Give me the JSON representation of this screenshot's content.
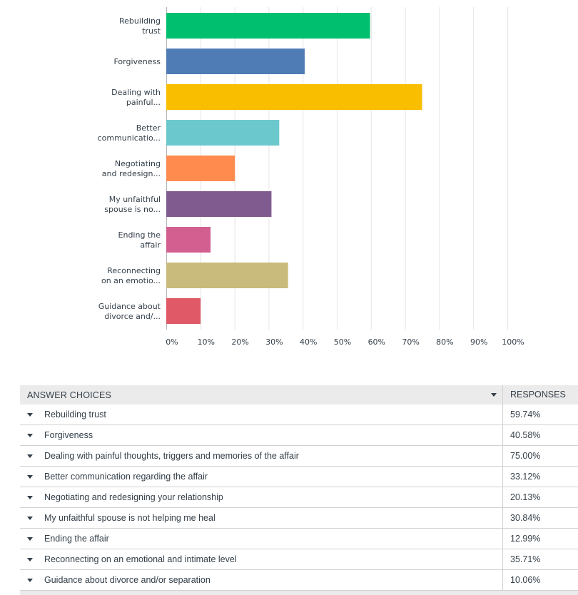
{
  "chart_data": {
    "type": "bar",
    "orientation": "horizontal",
    "categories": [
      [
        "Rebuilding",
        "trust"
      ],
      [
        "Forgiveness"
      ],
      [
        "Dealing with",
        "painful..."
      ],
      [
        "Better",
        "communicatio..."
      ],
      [
        "Negotiating",
        "and redesign..."
      ],
      [
        "My unfaithful",
        "spouse is no..."
      ],
      [
        "Ending the",
        "affair"
      ],
      [
        "Reconnecting",
        "on an emotio..."
      ],
      [
        "Guidance about",
        "divorce and/..."
      ]
    ],
    "values": [
      59.74,
      40.58,
      75.0,
      33.12,
      20.13,
      30.84,
      12.99,
      35.71,
      10.06
    ],
    "colors": [
      "#00bf6f",
      "#507cb6",
      "#f9be00",
      "#6bc8cd",
      "#ff8b4f",
      "#7f5b8f",
      "#d25f90",
      "#c9bb7b",
      "#e05966"
    ],
    "xlim": [
      0,
      100
    ],
    "ticks": [
      "0%",
      "10%",
      "20%",
      "30%",
      "40%",
      "50%",
      "60%",
      "70%",
      "80%",
      "90%",
      "100%"
    ],
    "grid": true
  },
  "table": {
    "header_choice": "ANSWER CHOICES",
    "header_responses": "RESPONSES",
    "rows": [
      {
        "choice": "Rebuilding trust",
        "response": "59.74%"
      },
      {
        "choice": "Forgiveness",
        "response": "40.58%"
      },
      {
        "choice": "Dealing with painful thoughts, triggers and memories of the affair",
        "response": "75.00%"
      },
      {
        "choice": "Better communication regarding the affair",
        "response": "33.12%"
      },
      {
        "choice": "Negotiating and redesigning your relationship",
        "response": "20.13%"
      },
      {
        "choice": "My unfaithful spouse is not helping me heal",
        "response": "30.84%"
      },
      {
        "choice": "Ending the affair",
        "response": "12.99%"
      },
      {
        "choice": "Reconnecting on an emotional and intimate level",
        "response": "35.71%"
      },
      {
        "choice": "Guidance about divorce and/or separation",
        "response": "10.06%"
      }
    ]
  }
}
